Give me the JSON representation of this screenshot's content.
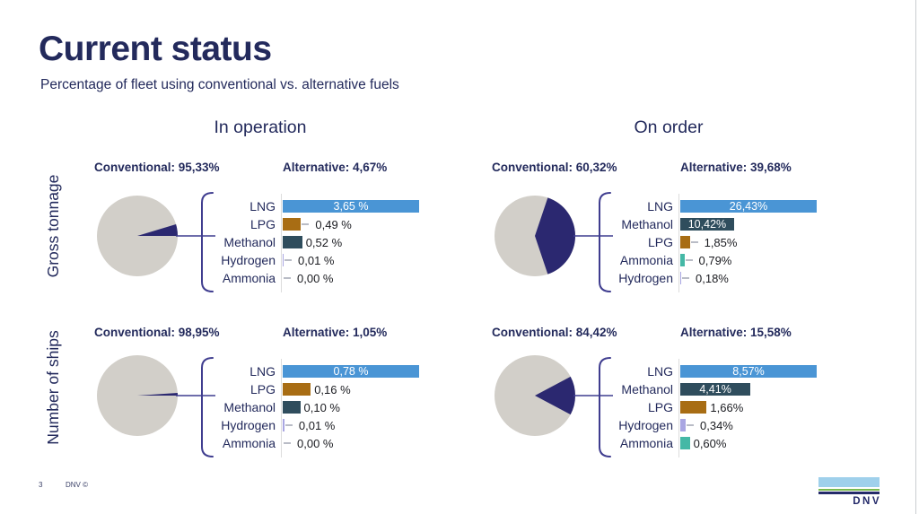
{
  "slide": {
    "title": "Current status",
    "subtitle": "Percentage of fleet using conventional vs. alternative fuels",
    "column_headers": [
      "In operation",
      "On order"
    ],
    "row_headers": [
      "Gross tonnage",
      "Number of ships"
    ],
    "footer": {
      "page_number": "3",
      "copyright": "DNV ©"
    },
    "logo": {
      "text": "DNV"
    }
  },
  "colors": {
    "navy_text": "#232a5c",
    "value_text": "#1a1b20",
    "pie_gray": "#d2cfc9",
    "pie_navy": "#2b2870",
    "brace": "#3f3d8f",
    "lng": "#4a95d5",
    "lpg": "#a86d14",
    "methanol": "#2f4d5d",
    "hydrogen": "#a9a6e2",
    "ammonia": "#45b8a6",
    "logo_lightblue": "#9fd0eb",
    "logo_green": "#79b94f",
    "logo_navy": "#242a6a"
  },
  "chart_data": [
    {
      "id": "gross-tonnage-in-operation",
      "row": "Gross tonnage",
      "column": "In operation",
      "type": "pie+bar",
      "pie": {
        "labels": [
          "Conventional",
          "Alternative"
        ],
        "values": [
          95.33,
          4.67
        ]
      },
      "conventional_label": "Conventional: 95,33%",
      "alternative_label": "Alternative: 4,67%",
      "bars": [
        {
          "fuel": "LNG",
          "value": 3.65,
          "label": "3,65 %",
          "color_key": "lng",
          "text_inside": true,
          "tick": false
        },
        {
          "fuel": "LPG",
          "value": 0.49,
          "label": "0,49 %",
          "color_key": "lpg",
          "text_inside": false,
          "tick": true
        },
        {
          "fuel": "Methanol",
          "value": 0.52,
          "label": "0,52 %",
          "color_key": "methanol",
          "text_inside": false,
          "tick": false
        },
        {
          "fuel": "Hydrogen",
          "value": 0.01,
          "label": "0,01 %",
          "color_key": "hydrogen",
          "text_inside": false,
          "tick": true
        },
        {
          "fuel": "Ammonia",
          "value": 0.0,
          "label": "0,00 %",
          "color_key": "ammonia",
          "text_inside": false,
          "tick": true
        }
      ]
    },
    {
      "id": "gross-tonnage-on-order",
      "row": "Gross tonnage",
      "column": "On order",
      "type": "pie+bar",
      "pie": {
        "labels": [
          "Conventional",
          "Alternative"
        ],
        "values": [
          60.32,
          39.68
        ]
      },
      "conventional_label": "Conventional: 60,32%",
      "alternative_label": "Alternative: 39,68%",
      "bars": [
        {
          "fuel": "LNG",
          "value": 26.43,
          "label": "26,43%",
          "color_key": "lng",
          "text_inside": true,
          "tick": false
        },
        {
          "fuel": "Methanol",
          "value": 10.42,
          "label": "10,42%",
          "color_key": "methanol",
          "text_inside": true,
          "tick": false
        },
        {
          "fuel": "LPG",
          "value": 1.85,
          "label": "1,85%",
          "color_key": "lpg",
          "text_inside": false,
          "tick": true
        },
        {
          "fuel": "Ammonia",
          "value": 0.79,
          "label": "0,79%",
          "color_key": "ammonia",
          "text_inside": false,
          "tick": true
        },
        {
          "fuel": "Hydrogen",
          "value": 0.18,
          "label": "0,18%",
          "color_key": "hydrogen",
          "text_inside": false,
          "tick": true
        }
      ]
    },
    {
      "id": "number-of-ships-in-operation",
      "row": "Number of ships",
      "column": "In operation",
      "type": "pie+bar",
      "pie": {
        "labels": [
          "Conventional",
          "Alternative"
        ],
        "values": [
          98.95,
          1.05
        ]
      },
      "conventional_label": "Conventional: 98,95%",
      "alternative_label": "Alternative: 1,05%",
      "bars": [
        {
          "fuel": "LNG",
          "value": 0.78,
          "label": "0,78 %",
          "color_key": "lng",
          "text_inside": true,
          "tick": false
        },
        {
          "fuel": "LPG",
          "value": 0.16,
          "label": "0,16 %",
          "color_key": "lpg",
          "text_inside": false,
          "tick": false
        },
        {
          "fuel": "Methanol",
          "value": 0.1,
          "label": "0,10 %",
          "color_key": "methanol",
          "text_inside": false,
          "tick": false
        },
        {
          "fuel": "Hydrogen",
          "value": 0.01,
          "label": "0,01 %",
          "color_key": "hydrogen",
          "text_inside": false,
          "tick": true
        },
        {
          "fuel": "Ammonia",
          "value": 0.0,
          "label": "0,00 %",
          "color_key": "ammonia",
          "text_inside": false,
          "tick": true
        }
      ]
    },
    {
      "id": "number-of-ships-on-order",
      "row": "Number of ships",
      "column": "On order",
      "type": "pie+bar",
      "pie": {
        "labels": [
          "Conventional",
          "Alternative"
        ],
        "values": [
          84.42,
          15.58
        ]
      },
      "conventional_label": "Conventional: 84,42%",
      "alternative_label": "Alternative: 15,58%",
      "bars": [
        {
          "fuel": "LNG",
          "value": 8.57,
          "label": "8,57%",
          "color_key": "lng",
          "text_inside": true,
          "tick": false
        },
        {
          "fuel": "Methanol",
          "value": 4.41,
          "label": "4,41%",
          "color_key": "methanol",
          "text_inside": true,
          "tick": false
        },
        {
          "fuel": "LPG",
          "value": 1.66,
          "label": "1,66%",
          "color_key": "lpg",
          "text_inside": false,
          "tick": false
        },
        {
          "fuel": "Hydrogen",
          "value": 0.34,
          "label": "0,34%",
          "color_key": "hydrogen",
          "text_inside": false,
          "tick": true
        },
        {
          "fuel": "Ammonia",
          "value": 0.6,
          "label": "0,60%",
          "color_key": "ammonia",
          "text_inside": false,
          "tick": false
        }
      ]
    }
  ]
}
